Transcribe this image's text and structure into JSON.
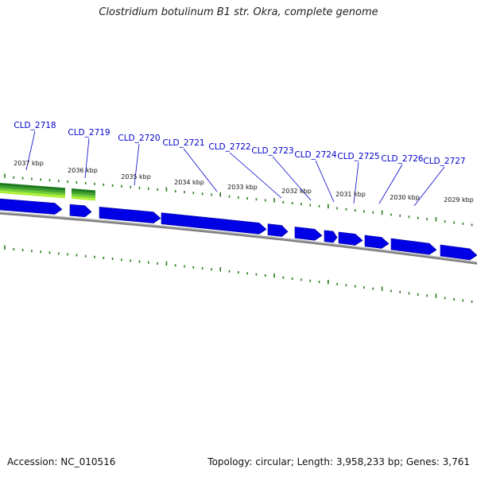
{
  "title": "Clostridium botulinum B1 str. Okra, complete genome",
  "footer": {
    "accession_label": "Accession:",
    "accession": "NC_010516",
    "topology_label": "Topology:",
    "topology": "circular",
    "length_label": "Length:",
    "length": "3,958,233 bp",
    "genes_label": "Genes:",
    "genes": "3,761"
  },
  "genes": [
    "CLD_2718",
    "CLD_2719",
    "CLD_2720",
    "CLD_2721",
    "CLD_2722",
    "CLD_2723",
    "CLD_2724",
    "CLD_2725",
    "CLD_2726",
    "CLD_2727"
  ],
  "kbp_ticks": [
    "2037 kbp",
    "2036 kbp",
    "2035 kbp",
    "2034 kbp",
    "2033 kbp",
    "2032 kbp",
    "2031 kbp",
    "2030 kbp",
    "2029 kbp"
  ],
  "colors": {
    "gene": "#0000e6",
    "gene_dark": "#00009a",
    "gene_label": "#0000cc",
    "tick": "#2a7a1e",
    "backbone": "#808080",
    "feature_dark_green": "#1f7a1f",
    "feature_light_green": "#aef03a"
  }
}
